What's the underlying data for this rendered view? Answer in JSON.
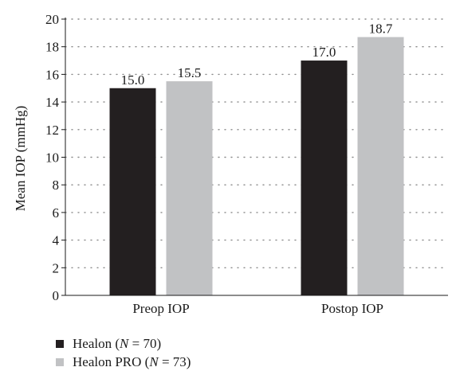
{
  "chart_data": {
    "type": "bar",
    "title": "",
    "xlabel": "",
    "ylabel": "Mean IOP (mmHg)",
    "ylim": [
      0,
      20
    ],
    "yticks": [
      0,
      2,
      4,
      6,
      8,
      10,
      12,
      14,
      16,
      18,
      20
    ],
    "grid": true,
    "legend_position": "bottom-left",
    "categories": [
      "Preop IOP",
      "Postop IOP"
    ],
    "series": [
      {
        "name": "Healon",
        "n_label": "N",
        "n_value": "70",
        "color": "#231f20",
        "values": [
          15.0,
          17.0
        ],
        "labels": [
          "15.0",
          "17.0"
        ]
      },
      {
        "name": "Healon PRO",
        "n_label": "N",
        "n_value": "73",
        "color": "#c1c2c4",
        "values": [
          15.5,
          18.7
        ],
        "labels": [
          "15.5",
          "18.7"
        ]
      }
    ]
  }
}
